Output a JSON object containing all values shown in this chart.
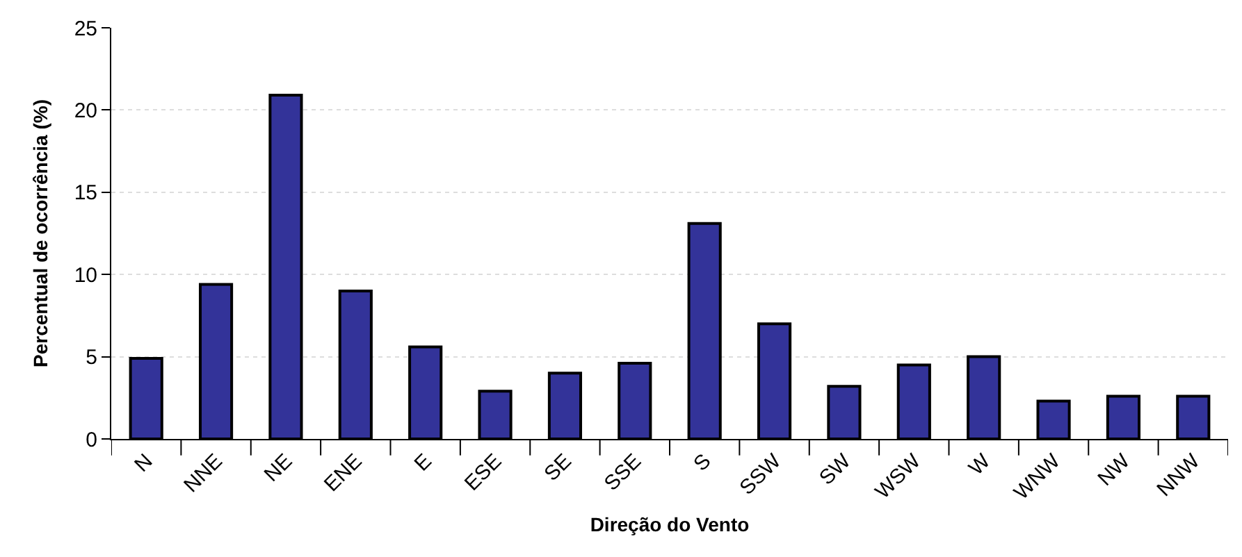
{
  "chart_data": {
    "type": "bar",
    "xlabel": "Direção do Vento",
    "ylabel": "Percentual de ocorrência (%)",
    "categories": [
      "N",
      "NNE",
      "NE",
      "ENE",
      "E",
      "ESE",
      "SE",
      "SSE",
      "S",
      "SSW",
      "SW",
      "WSW",
      "W",
      "WNW",
      "NW",
      "NNW"
    ],
    "values": [
      4.9,
      9.4,
      20.9,
      9.0,
      5.6,
      2.9,
      4.0,
      4.6,
      13.1,
      7.0,
      3.2,
      4.5,
      5.0,
      2.3,
      2.6,
      2.6
    ],
    "color": "#333399",
    "ylim": [
      0,
      25
    ],
    "yticks": [
      0,
      5,
      10,
      15,
      20,
      25
    ],
    "grid": "y"
  }
}
